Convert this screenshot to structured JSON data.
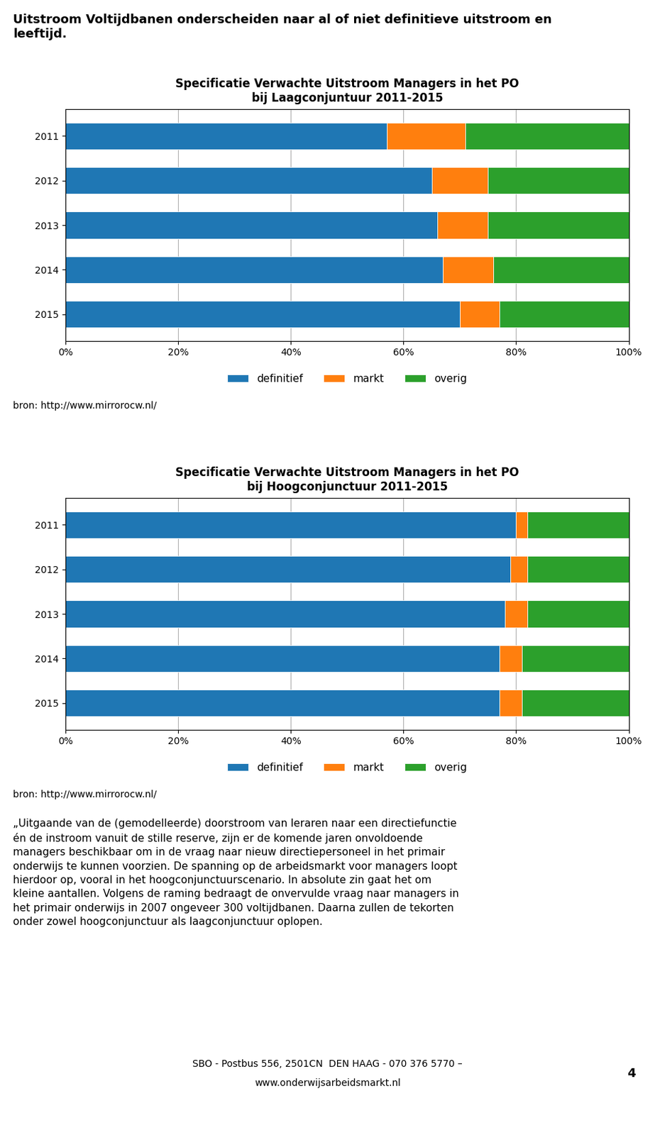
{
  "title": "Uitstroom Voltijdbanen onderscheiden naar al of niet definitieve uitstroom en\nleeftijd.",
  "annotations": [
    "„Uitgaande van de (gemodelleerde) doorstroom van leraren naar een directiefunctie\nén de instroom vanuit de stille reserve, zijn er de komende jaren onvoldoende\nmanagers beschikbaar om in de vraag naar nieuw directiepersoneel in het primair\nonderwijs te kunnen voorzien. De spanning op de arbeidsmarkt voor managers loopt\nhierdoor op, vooral in het hoogconjunctuurscenario. In absolute zin gaat het om\nkleine aantallen. Volgens de raming bedraagt de onvervulde vraag naar managers in\nhet primair onderwijs in 2007 ongeveer 300 voltijdbanen. Daarna zullen de tekorten\nonder zowel hoogconjunctuur als laagconjunctuur oplopen.",
    "SBO - Postbus 556, 2501CN  DEN HAAG - 070 376 5770 –",
    "www.onderwijsarbeidsmarkt.nl",
    "4"
  ],
  "chart_data": [
    {
      "type": "bar",
      "orientation": "horizontal",
      "stacked": true,
      "title": "Specificatie Verwachte Uitstroom Managers in het PO\nbij Laagconjuntuur 2011-2015",
      "categories": [
        "2011",
        "2012",
        "2013",
        "2014",
        "2015"
      ],
      "series": [
        {
          "name": "definitief",
          "values": [
            57.0,
            65.0,
            66.0,
            67.0,
            70.0
          ]
        },
        {
          "name": "markt",
          "values": [
            14.0,
            10.0,
            9.0,
            9.0,
            7.0
          ]
        },
        {
          "name": "overig",
          "values": [
            29.0,
            25.0,
            25.0,
            24.0,
            23.0
          ]
        }
      ],
      "xlim": [
        0,
        100
      ],
      "xticks": [
        {
          "value": 0,
          "label": "0%"
        },
        {
          "value": 20,
          "label": "20%"
        },
        {
          "value": 40,
          "label": "40%"
        },
        {
          "value": 60,
          "label": "60%"
        },
        {
          "value": 80,
          "label": "80%"
        },
        {
          "value": 100,
          "label": "100%"
        }
      ],
      "grid": true,
      "legend": "upper center",
      "annotations": [
        "bron: http://www.mirrorocw.nl/"
      ]
    },
    {
      "type": "bar",
      "orientation": "horizontal",
      "stacked": true,
      "title": "Specificatie Verwachte Uitstroom Managers in het PO\nbij Hoogconjunctuur 2011-2015",
      "categories": [
        "2011",
        "2012",
        "2013",
        "2014",
        "2015"
      ],
      "series": [
        {
          "name": "definitief",
          "values": [
            80.0,
            79.0,
            78.0,
            77.0,
            77.0
          ]
        },
        {
          "name": "markt",
          "values": [
            2.0,
            3.0,
            4.0,
            4.0,
            4.0
          ]
        },
        {
          "name": "overig",
          "values": [
            18.0,
            18.0,
            18.0,
            19.0,
            19.0
          ]
        }
      ],
      "xlim": [
        0,
        100
      ],
      "xticks": [
        {
          "value": 0,
          "label": "0%"
        },
        {
          "value": 20,
          "label": "20%"
        },
        {
          "value": 40,
          "label": "40%"
        },
        {
          "value": 60,
          "label": "60%"
        },
        {
          "value": 80,
          "label": "80%"
        },
        {
          "value": 100,
          "label": "100%"
        }
      ],
      "grid": true,
      "legend": "upper center",
      "annotations": [
        "bron: http://www.mirrorocw.nl/"
      ]
    }
  ]
}
